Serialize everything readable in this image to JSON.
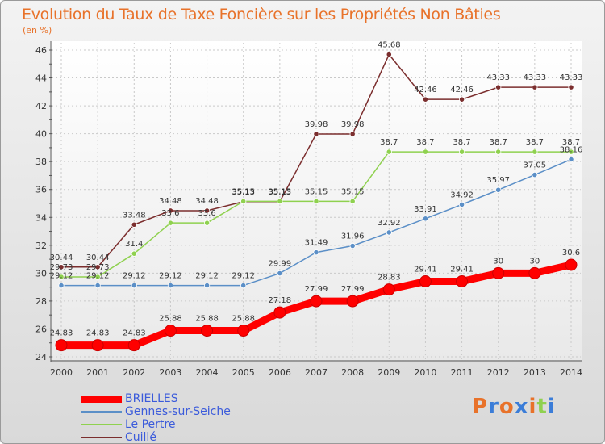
{
  "title": "Evolution du Taux de Taxe Foncière sur les Propriétés Non Bâties",
  "unit_label": "(en %)",
  "logo": "Proxiti",
  "chart_data": {
    "type": "line",
    "title": "Evolution du Taux de Taxe Foncière sur les Propriétés Non Bâties",
    "ylabel": "(en %)",
    "xlabel": "",
    "categories": [
      "2000",
      "2001",
      "2002",
      "2003",
      "2004",
      "2005",
      "2006",
      "2007",
      "2008",
      "2009",
      "2010",
      "2011",
      "2012",
      "2013",
      "2014"
    ],
    "ylim": [
      24,
      46
    ],
    "yticks": [
      24,
      26,
      28,
      30,
      32,
      34,
      36,
      38,
      40,
      42,
      44,
      46
    ],
    "grid": true,
    "legend_position": "bottom-left",
    "series": [
      {
        "name": "BRIELLES",
        "color": "#ff0000",
        "values": [
          24.83,
          24.83,
          24.83,
          25.88,
          25.88,
          25.88,
          27.18,
          27.99,
          27.99,
          28.83,
          29.41,
          29.41,
          30,
          30,
          30.6
        ],
        "labels": [
          "24.83",
          "24.83",
          "24.83",
          "25.88",
          "25.88",
          "25.88",
          "27.18",
          "27.99",
          "27.99",
          "28.83",
          "29.41",
          "29.41",
          "30",
          "30",
          "30.6"
        ]
      },
      {
        "name": "Gennes-sur-Seiche",
        "color": "#5b8fc7",
        "values": [
          29.12,
          29.12,
          29.12,
          29.12,
          29.12,
          29.12,
          29.99,
          31.49,
          31.96,
          32.92,
          33.91,
          34.92,
          35.97,
          37.05,
          38.16
        ],
        "labels": [
          "29.12",
          "29.12",
          "29.12",
          "29.12",
          "29.12",
          "29.12",
          "29.99",
          "31.49",
          "31.96",
          "32.92",
          "33.91",
          "34.92",
          "35.97",
          "37.05",
          "38.16"
        ]
      },
      {
        "name": "Le Pertre",
        "color": "#8fd14f",
        "values": [
          29.73,
          29.73,
          31.4,
          33.6,
          33.6,
          35.15,
          35.15,
          35.15,
          35.15,
          38.7,
          38.7,
          38.7,
          38.7,
          38.7,
          38.7
        ],
        "labels": [
          "29.73",
          "29.73",
          "31.4",
          "33.6",
          "33.6",
          "35.15",
          "35.15",
          "35.15",
          "35.15",
          "38.7",
          "38.7",
          "38.7",
          "38.7",
          "38.7",
          "38.7"
        ]
      },
      {
        "name": "Cuillé",
        "color": "#7b2e2e",
        "values": [
          30.44,
          30.44,
          33.48,
          34.48,
          34.48,
          35.13,
          35.13,
          39.98,
          39.98,
          45.68,
          42.46,
          42.46,
          43.33,
          43.33,
          43.33
        ],
        "labels": [
          "30.44",
          "30.44",
          "33.48",
          "34.48",
          "34.48",
          "35.13",
          "35.13",
          "39.98",
          "39.98",
          "45.68",
          "42.46",
          "42.46",
          "43.33",
          "43.33",
          "43.33"
        ]
      }
    ]
  }
}
